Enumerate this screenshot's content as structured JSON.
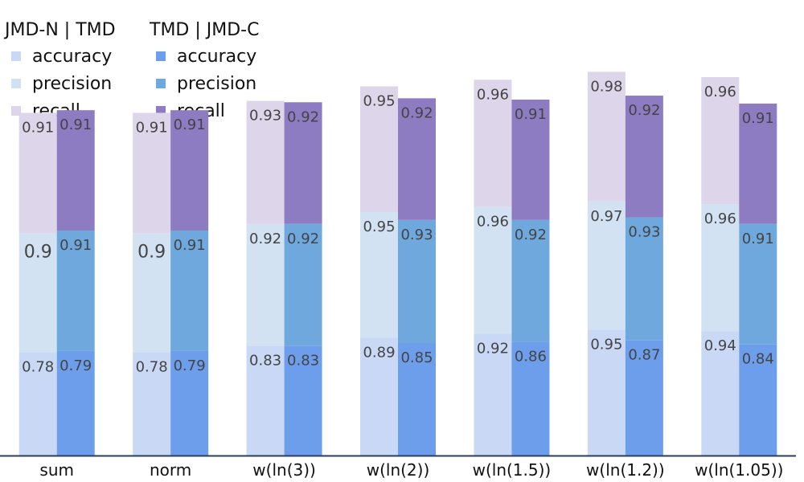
{
  "chart_data": {
    "type": "bar",
    "stacked": true,
    "categories": [
      "sum",
      "norm",
      "w(ln(3))",
      "w(ln(2))",
      "w(ln(1.5))",
      "w(ln(1.2))",
      "w(ln(1.05))"
    ],
    "legend_groups": [
      {
        "title": "JMD-N | TMD",
        "group": "left"
      },
      {
        "title": "TMD | JMD-C",
        "group": "right"
      }
    ],
    "legend_placement": "top-left",
    "grid": false,
    "series": [
      {
        "name": "accuracy",
        "group": "left",
        "color": "#c9d9f5",
        "values": [
          0.78,
          0.78,
          0.83,
          0.89,
          0.92,
          0.95,
          0.94
        ]
      },
      {
        "name": "precision",
        "group": "left",
        "color": "#d2e2f2",
        "values": [
          0.9,
          0.9,
          0.92,
          0.95,
          0.96,
          0.97,
          0.96
        ]
      },
      {
        "name": "recall",
        "group": "left",
        "color": "#ddd5ea",
        "values": [
          0.91,
          0.91,
          0.93,
          0.95,
          0.96,
          0.98,
          0.96
        ]
      },
      {
        "name": "accuracy",
        "group": "right",
        "color": "#6d9eeb",
        "values": [
          0.79,
          0.79,
          0.83,
          0.85,
          0.86,
          0.87,
          0.84
        ]
      },
      {
        "name": "precision",
        "group": "right",
        "color": "#6fa8dc",
        "values": [
          0.91,
          0.91,
          0.92,
          0.93,
          0.92,
          0.93,
          0.91
        ]
      },
      {
        "name": "recall",
        "group": "right",
        "color": "#8e7cc3",
        "values": [
          0.91,
          0.91,
          0.92,
          0.92,
          0.91,
          0.92,
          0.91
        ]
      }
    ],
    "ylim": [
      0,
      3.2
    ],
    "label_color": "#444444",
    "axis_color": "#2a3f5f"
  }
}
